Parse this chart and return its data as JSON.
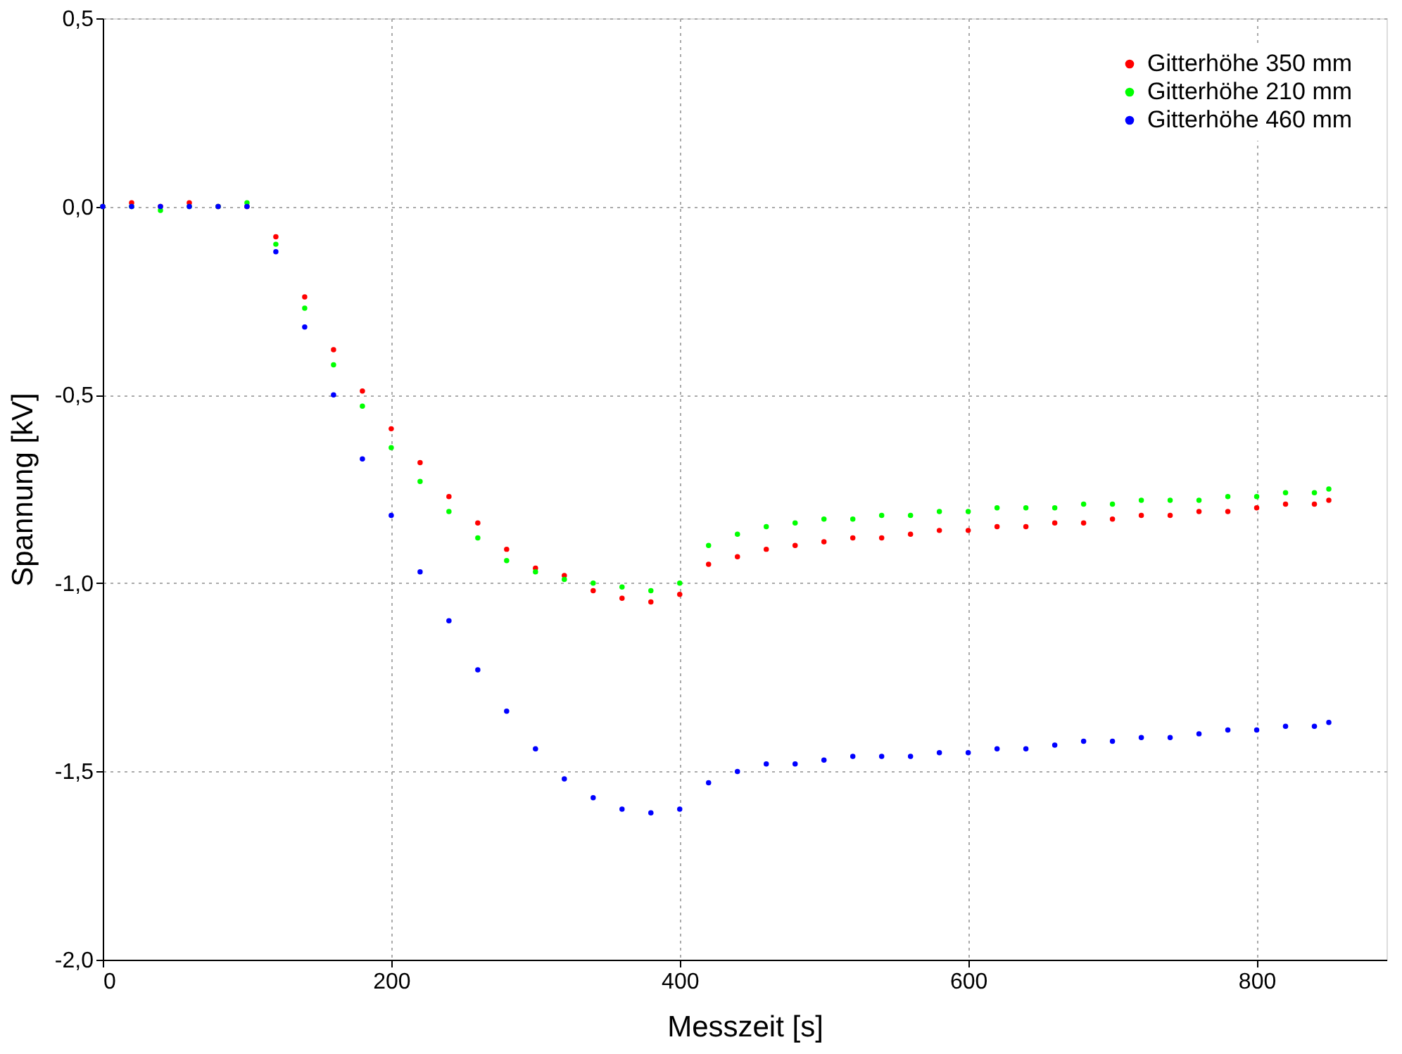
{
  "chart_data": {
    "type": "scatter",
    "xlabel": "Messzeit [s]",
    "ylabel": "Spannung [kV]",
    "x": [
      0,
      20,
      40,
      60,
      80,
      100,
      120,
      140,
      160,
      180,
      200,
      220,
      240,
      260,
      280,
      300,
      320,
      340,
      360,
      380,
      400,
      420,
      440,
      460,
      480,
      500,
      520,
      540,
      560,
      580,
      600,
      620,
      640,
      660,
      680,
      700,
      720,
      740,
      760,
      780,
      800,
      820,
      840,
      850
    ],
    "series": [
      {
        "name": "Gitterhöhe 350 mm",
        "color": "#ff0000",
        "values": [
          0.0,
          0.01,
          0.0,
          0.01,
          0.0,
          0.0,
          -0.08,
          -0.24,
          -0.38,
          -0.49,
          -0.59,
          -0.68,
          -0.77,
          -0.84,
          -0.91,
          -0.96,
          -0.98,
          -1.02,
          -1.04,
          -1.05,
          -1.03,
          -0.95,
          -0.93,
          -0.91,
          -0.9,
          -0.89,
          -0.88,
          -0.88,
          -0.87,
          -0.86,
          -0.86,
          -0.85,
          -0.85,
          -0.84,
          -0.84,
          -0.83,
          -0.82,
          -0.82,
          -0.81,
          -0.81,
          -0.8,
          -0.79,
          -0.79,
          -0.78
        ]
      },
      {
        "name": "Gitterhöhe 210 mm",
        "color": "#00ff00",
        "values": [
          0.0,
          0.0,
          -0.01,
          0.0,
          0.0,
          0.01,
          -0.1,
          -0.27,
          -0.42,
          -0.53,
          -0.64,
          -0.73,
          -0.81,
          -0.88,
          -0.94,
          -0.97,
          -0.99,
          -1.0,
          -1.01,
          -1.02,
          -1.0,
          -0.9,
          -0.87,
          -0.85,
          -0.84,
          -0.83,
          -0.83,
          -0.82,
          -0.82,
          -0.81,
          -0.81,
          -0.8,
          -0.8,
          -0.8,
          -0.79,
          -0.79,
          -0.78,
          -0.78,
          -0.78,
          -0.77,
          -0.77,
          -0.76,
          -0.76,
          -0.75
        ]
      },
      {
        "name": "Gitterhöhe 460 mm",
        "color": "#0000ff",
        "values": [
          0.0,
          0.0,
          0.0,
          0.0,
          0.0,
          0.0,
          -0.12,
          -0.32,
          -0.5,
          -0.67,
          -0.82,
          -0.97,
          -1.1,
          -1.23,
          -1.34,
          -1.44,
          -1.52,
          -1.57,
          -1.6,
          -1.61,
          -1.6,
          -1.53,
          -1.5,
          -1.48,
          -1.48,
          -1.47,
          -1.46,
          -1.46,
          -1.46,
          -1.45,
          -1.45,
          -1.44,
          -1.44,
          -1.43,
          -1.42,
          -1.42,
          -1.41,
          -1.41,
          -1.4,
          -1.39,
          -1.39,
          -1.38,
          -1.38,
          -1.37
        ]
      }
    ],
    "xlim": [
      0,
      890
    ],
    "xticks": [
      0,
      200,
      400,
      600,
      800
    ],
    "ylim": [
      -2.0,
      0.5
    ],
    "yticks": [
      {
        "value": -2.0,
        "label": "-2,0"
      },
      {
        "value": -1.5,
        "label": "-1,5"
      },
      {
        "value": -1.0,
        "label": "-1,0"
      },
      {
        "value": -0.5,
        "label": "-0,5"
      },
      {
        "value": 0.0,
        "label": "0,0"
      },
      {
        "value": 0.5,
        "label": "0,5"
      }
    ],
    "grid": true,
    "legend": "top right",
    "marker": "circle"
  }
}
